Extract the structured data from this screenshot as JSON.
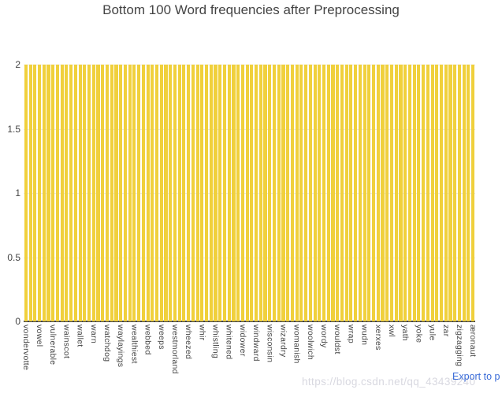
{
  "chart_data": {
    "type": "bar",
    "title": "Bottom 100 Word frequencies after Preprocessing",
    "bar_count": 100,
    "uniform_value": 2,
    "ylim": [
      0,
      2
    ],
    "yticks": [
      0,
      0.5,
      1,
      1.5,
      2
    ],
    "xlabel": "",
    "ylabel": "",
    "grid": true,
    "legend": "none",
    "bar_color": "#f0d03c",
    "label_every_nth_bar": 3,
    "tick_labels": [
      "vondervotte",
      "vowel",
      "vulnerable",
      "wainscot",
      "wallet",
      "warn",
      "watchdog",
      "waylayings",
      "wealthiest",
      "webbed",
      "weeps",
      "westmorland",
      "wheezed",
      "whir",
      "whistling",
      "whitened",
      "widower",
      "windward",
      "wisconsin",
      "wizardry",
      "womanish",
      "woolwich",
      "wordy",
      "wouldst",
      "wrap",
      "wudn",
      "xerxes",
      "xwl",
      "yath",
      "yoke",
      "yule",
      "zar",
      "zigzagging",
      "æronaut"
    ]
  },
  "watermark": "https://blog.csdn.net/qq_43439240",
  "export_link": {
    "label": "Export to p",
    "color": "#3b6cd8"
  }
}
